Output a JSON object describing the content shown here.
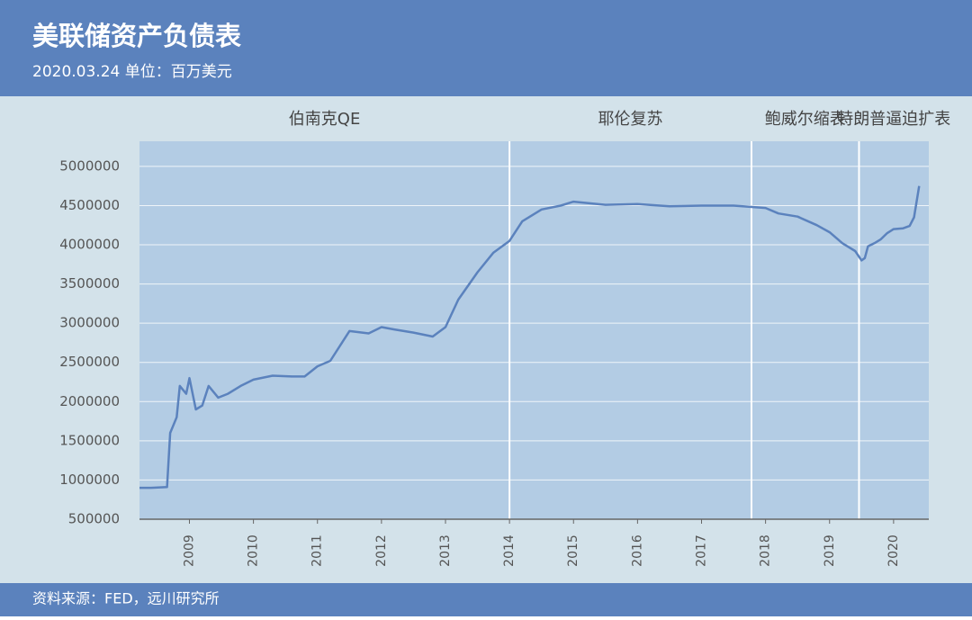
{
  "chart_data": {
    "type": "line",
    "title": "美联储资产负债表",
    "subtitle": "2020.03.24  单位：百万美元",
    "source": "资料来源：FED，远川研究所",
    "region_labels": [
      "伯南克QE",
      "耶伦复苏",
      "鲍威尔缩表",
      "特朗普逼迫扩表"
    ],
    "region_bounds": [
      2014.0,
      2017.78,
      2019.46
    ],
    "x": [
      2008.22,
      2008.4,
      2008.65,
      2008.7,
      2008.8,
      2008.85,
      2008.95,
      2009.0,
      2009.1,
      2009.2,
      2009.3,
      2009.45,
      2009.6,
      2009.8,
      2010.0,
      2010.3,
      2010.6,
      2010.8,
      2011.0,
      2011.2,
      2011.5,
      2011.8,
      2012.0,
      2012.2,
      2012.5,
      2012.8,
      2013.0,
      2013.2,
      2013.5,
      2013.75,
      2014.0,
      2014.2,
      2014.5,
      2014.8,
      2015.0,
      2015.5,
      2016.0,
      2016.5,
      2017.0,
      2017.5,
      2018.0,
      2018.2,
      2018.5,
      2018.8,
      2019.0,
      2019.2,
      2019.4,
      2019.5,
      2019.55,
      2019.6,
      2019.7,
      2019.8,
      2019.9,
      2020.0,
      2020.15,
      2020.25,
      2020.32,
      2020.4
    ],
    "values": [
      900000,
      900000,
      910000,
      1600000,
      1800000,
      2200000,
      2100000,
      2300000,
      1900000,
      1950000,
      2200000,
      2050000,
      2100000,
      2200000,
      2280000,
      2330000,
      2320000,
      2320000,
      2450000,
      2520000,
      2900000,
      2870000,
      2950000,
      2920000,
      2880000,
      2830000,
      2950000,
      3300000,
      3650000,
      3900000,
      4050000,
      4300000,
      4450000,
      4500000,
      4550000,
      4510000,
      4520000,
      4490000,
      4500000,
      4500000,
      4470000,
      4400000,
      4360000,
      4250000,
      4160000,
      4020000,
      3920000,
      3800000,
      3830000,
      3980000,
      4020000,
      4070000,
      4150000,
      4200000,
      4210000,
      4240000,
      4350000,
      4750000
    ],
    "color": "#5b82bd",
    "xlim": [
      2008.22,
      2020.55
    ],
    "xticks": [
      2009,
      2010,
      2011,
      2012,
      2013,
      2014,
      2015,
      2016,
      2017,
      2018,
      2019,
      2020
    ],
    "ylim": [
      500000,
      5320000
    ],
    "yticks": [
      500000,
      1000000,
      1500000,
      2000000,
      2500000,
      3000000,
      3500000,
      4000000,
      4500000,
      5000000
    ],
    "grid": true
  }
}
